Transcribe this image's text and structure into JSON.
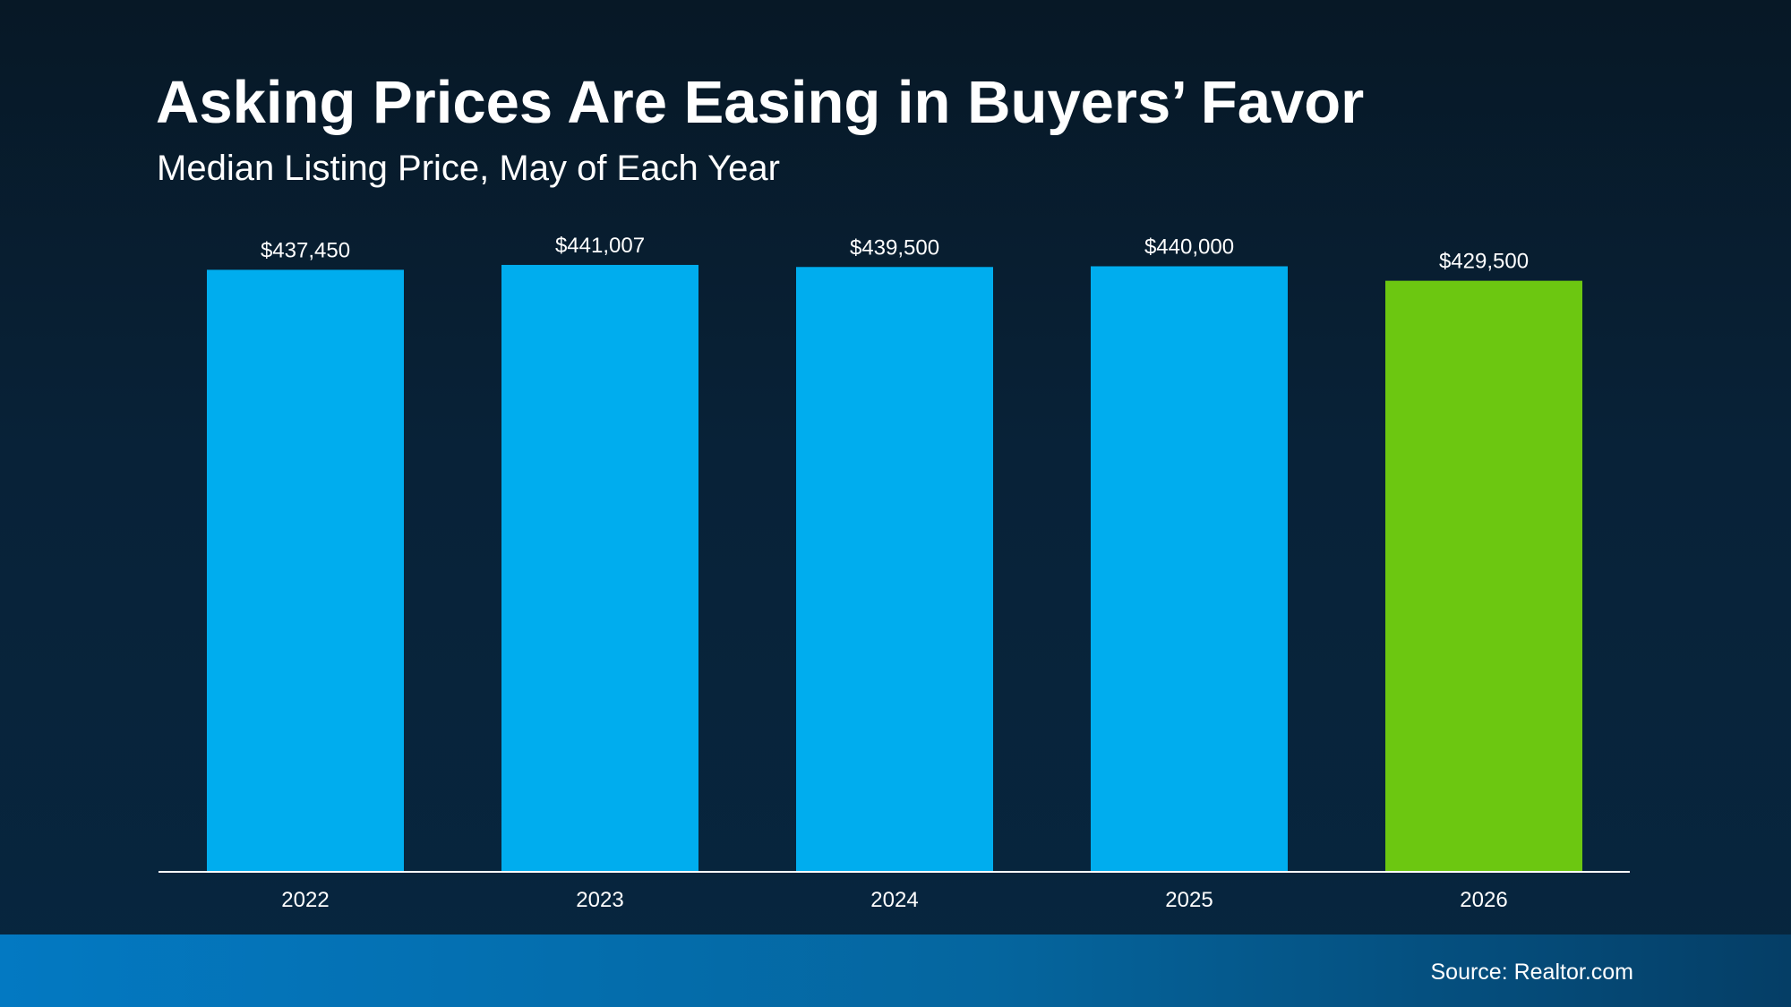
{
  "title": "Asking Prices Are Easing in Buyers’ Favor",
  "subtitle": "Median Listing Price, May of Each Year",
  "source": "Source: Realtor.com",
  "colors": {
    "bar_default": "#00adee",
    "bar_highlight": "#6cc711",
    "axis_line": "#ffffff",
    "text": "#ffffff"
  },
  "chart_data": {
    "type": "bar",
    "title": "Asking Prices Are Easing in Buyers’ Favor",
    "subtitle": "Median Listing Price, May of Each Year",
    "categories": [
      "2022",
      "2023",
      "2024",
      "2025",
      "2026"
    ],
    "values": [
      437450,
      441007,
      439500,
      440000,
      429500
    ],
    "data_labels": [
      "$437,450",
      "$441,007",
      "$439,500",
      "$440,000",
      "$429,500"
    ],
    "highlight_category": "2026",
    "ylim": [
      0,
      445000
    ],
    "grid": false,
    "legend": "none"
  }
}
